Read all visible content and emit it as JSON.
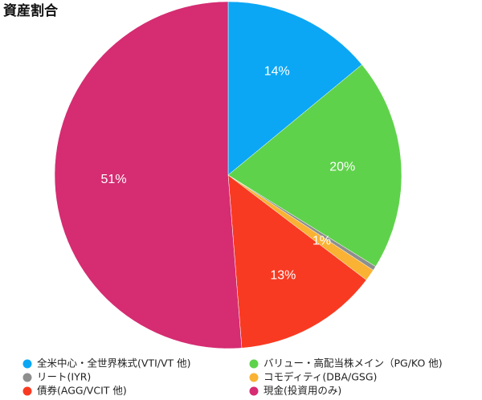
{
  "chart_data": {
    "type": "pie",
    "title": "資産割合",
    "categories": [
      "全米中心・全世界株式(VTI/VT 他)",
      "バリュー・高配当株メイン（PG/KO 他)",
      "リート(IYR)",
      "コモディティ(DBA/GSG)",
      "債券(AGG/VCIT 他)",
      "現金(投資用のみ)"
    ],
    "values": [
      14,
      19.8,
      0.4,
      1.1,
      13.4,
      51.2
    ],
    "value_labels": [
      "14%",
      "20%",
      null,
      "1%",
      "13%",
      "51%"
    ],
    "colors": [
      "#0ba7f5",
      "#5fd24b",
      "#8e8e8e",
      "#f9b233",
      "#f93a22",
      "#d52c72"
    ]
  }
}
